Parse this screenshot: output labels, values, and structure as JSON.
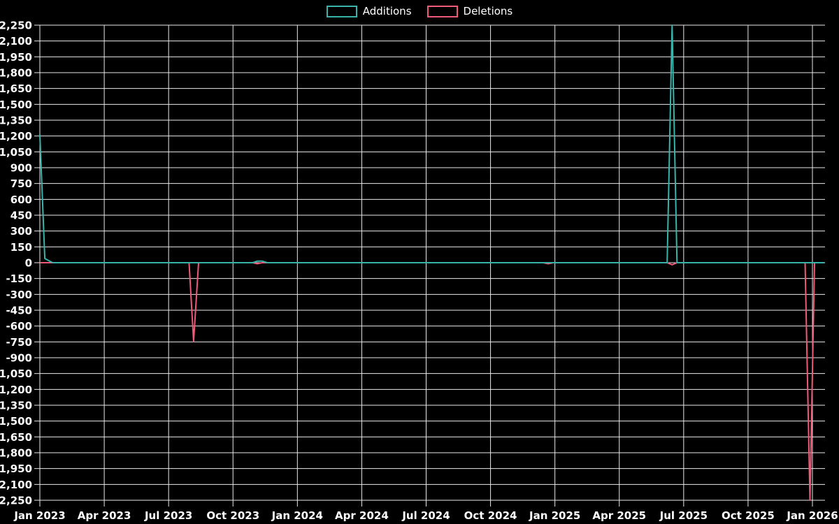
{
  "page": {
    "background_color": "#000000"
  },
  "legend": {
    "items": [
      {
        "label": "Additions",
        "color": "#39b3ab"
      },
      {
        "label": "Deletions",
        "color": "#ee5a77"
      }
    ]
  },
  "chart_data": {
    "type": "line",
    "title": "",
    "xlabel": "",
    "ylabel": "",
    "grid": true,
    "legend_position": "top-center",
    "background_color": "#000000",
    "grid_color": "#e9e9e9",
    "text_color": "#ffffff",
    "y_axis": {
      "min": -2250,
      "max": 2250,
      "step": 150,
      "tick_labels": [
        "2,250",
        "2,100",
        "1,950",
        "1,800",
        "1,650",
        "1,500",
        "1,350",
        "1,200",
        "1,050",
        "900",
        "750",
        "600",
        "450",
        "300",
        "150",
        "0",
        "-150",
        "-300",
        "-450",
        "-600",
        "-750",
        "-900",
        "-1,050",
        "-1,200",
        "-1,350",
        "-1,500",
        "-1,650",
        "-1,800",
        "-1,950",
        "-2,100",
        "-2,250"
      ]
    },
    "x_axis": {
      "tick_labels": [
        "Jan 2023",
        "Apr 2023",
        "Jul 2023",
        "Oct 2023",
        "Jan 2024",
        "Apr 2024",
        "Jul 2024",
        "Oct 2024",
        "Jan 2025",
        "Apr 2025",
        "Jul 2025",
        "Oct 2025",
        "Jan 2026"
      ],
      "tick_months": [
        0,
        3,
        6,
        9,
        12,
        15,
        18,
        21,
        24,
        27,
        30,
        33,
        36
      ]
    },
    "series": [
      {
        "name": "Additions",
        "color": "#39b3ab",
        "points": [
          [
            "2023-01-01",
            1215
          ],
          [
            "2023-01-08",
            40
          ],
          [
            "2023-01-19",
            0
          ],
          [
            "2023-10-29",
            0
          ],
          [
            "2023-11-05",
            15
          ],
          [
            "2023-11-12",
            15
          ],
          [
            "2023-11-19",
            0
          ],
          [
            "2025-06-08",
            0
          ],
          [
            "2025-06-15",
            2255
          ],
          [
            "2025-06-22",
            0
          ],
          [
            "2026-01-18",
            0
          ]
        ]
      },
      {
        "name": "Deletions",
        "color": "#ee5a77",
        "points": [
          [
            "2023-01-01",
            0
          ],
          [
            "2023-07-30",
            0
          ],
          [
            "2023-08-06",
            -745
          ],
          [
            "2023-08-13",
            0
          ],
          [
            "2023-10-29",
            0
          ],
          [
            "2023-11-05",
            -10
          ],
          [
            "2023-11-12",
            0
          ],
          [
            "2024-12-15",
            0
          ],
          [
            "2024-12-22",
            -10
          ],
          [
            "2024-12-29",
            0
          ],
          [
            "2025-06-08",
            0
          ],
          [
            "2025-06-15",
            -20
          ],
          [
            "2025-06-22",
            0
          ],
          [
            "2025-12-21",
            0
          ],
          [
            "2025-12-28",
            -2250
          ],
          [
            "2026-01-04",
            0
          ],
          [
            "2026-01-18",
            0
          ]
        ]
      }
    ]
  }
}
